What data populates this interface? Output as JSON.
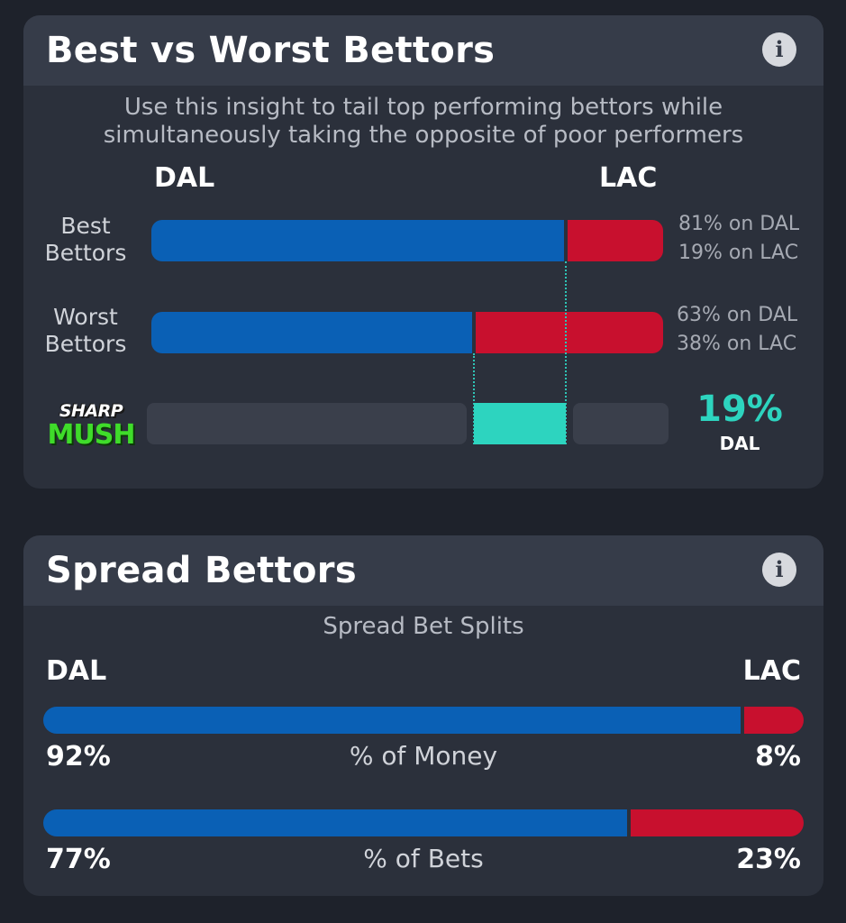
{
  "best_vs_worst": {
    "title": "Best vs Worst Bettors",
    "subtitle_line1": "Use this insight to tail top performing bettors while",
    "subtitle_line2": "simultaneously taking the opposite of poor performers",
    "team_left": "DAL",
    "team_right": "LAC",
    "rows": [
      {
        "label_line1": "Best",
        "label_line2": "Bettors",
        "left_pct": 81,
        "right_pct_display": 19,
        "left_text": "81% on DAL",
        "right_text": "19% on LAC"
      },
      {
        "label_line1": "Worst",
        "label_line2": "Bettors",
        "left_pct": 63,
        "right_pct_display": 38,
        "left_text": "63% on DAL",
        "right_text": "38% on LAC"
      }
    ],
    "logo_line1": "SHARP",
    "logo_line2": "MUSH",
    "sharp_value": "19%",
    "sharp_team": "DAL"
  },
  "spread": {
    "title": "Spread Bettors",
    "subtitle": "Spread Bet Splits",
    "team_left": "DAL",
    "team_right": "LAC",
    "rows": [
      {
        "label": "% of Money",
        "left_pct": 92,
        "left_text": "92%",
        "right_text": "8%"
      },
      {
        "label": "% of Bets",
        "left_pct": 77,
        "left_text": "77%",
        "right_text": "23%"
      }
    ]
  },
  "icons": {
    "info": "i"
  },
  "colors": {
    "dal": "#0a60b5",
    "lac": "#c8102e",
    "accent": "#2dd4bf"
  }
}
